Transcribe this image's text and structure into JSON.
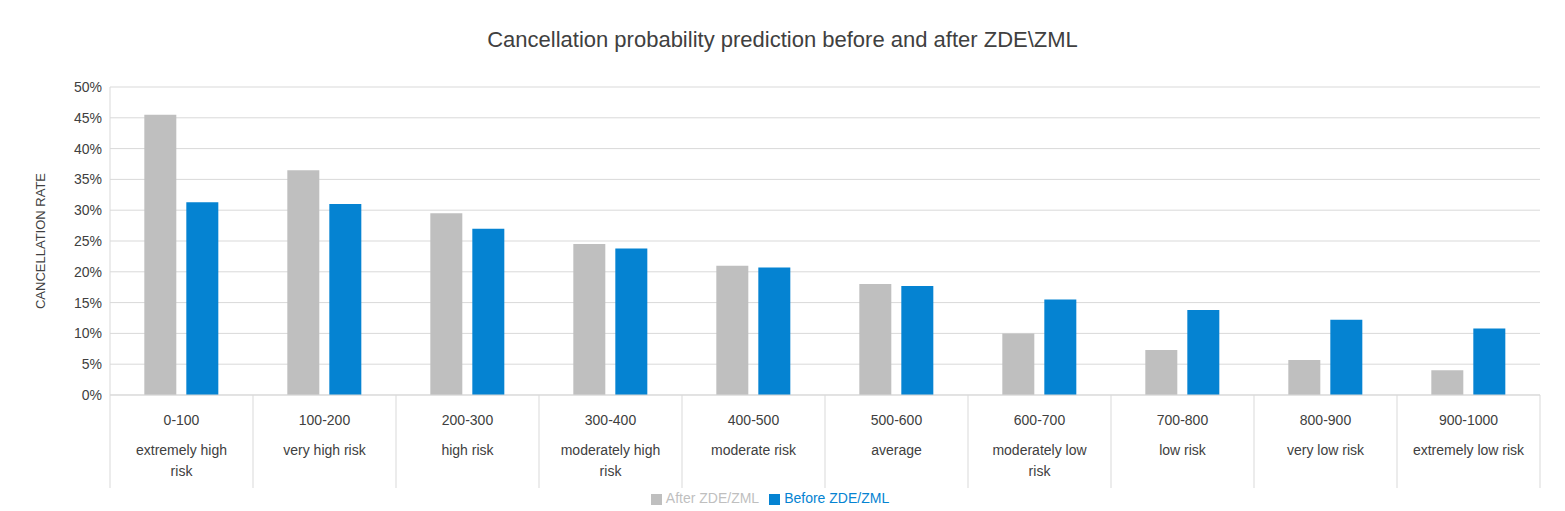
{
  "chart_data": {
    "type": "bar",
    "title": "Cancellation probability prediction before and after ZDE\\ZML",
    "y_label": "CANCELLATION RATE",
    "categories": [
      "0-100",
      "100-200",
      "200-300",
      "300-400",
      "400-500",
      "500-600",
      "600-700",
      "700-800",
      "800-900",
      "900-1000"
    ],
    "category_sublabels": [
      "extremely high risk",
      "very high risk",
      "high risk",
      "moderately high risk",
      "moderate risk",
      "average",
      "moderately low risk",
      "low risk",
      "very low risk",
      "extremely low risk"
    ],
    "series": [
      {
        "name": "After ZDE/ZML",
        "color": "#bfbfbf",
        "values": [
          45.5,
          36.5,
          29.5,
          24.5,
          21,
          18,
          10,
          7.3,
          5.7,
          4
        ]
      },
      {
        "name": "Before ZDE/ZML",
        "color": "#0583d2",
        "values": [
          31.3,
          31,
          27,
          23.8,
          20.7,
          17.7,
          15.5,
          13.8,
          12.2,
          10.8
        ]
      }
    ],
    "ylim": [
      0,
      50
    ],
    "yticks": [
      {
        "value": 0,
        "label": "0%"
      },
      {
        "value": 5,
        "label": "5%"
      },
      {
        "value": 10,
        "label": "10%"
      },
      {
        "value": 15,
        "label": "15%"
      },
      {
        "value": 20,
        "label": "20%"
      },
      {
        "value": 25,
        "label": "25%"
      },
      {
        "value": 30,
        "label": "30%"
      },
      {
        "value": 35,
        "label": "35%"
      },
      {
        "value": 40,
        "label": "40%"
      },
      {
        "value": 45,
        "label": "45%"
      },
      {
        "value": 50,
        "label": "50%"
      }
    ],
    "grid": true,
    "legend": "bottom"
  }
}
